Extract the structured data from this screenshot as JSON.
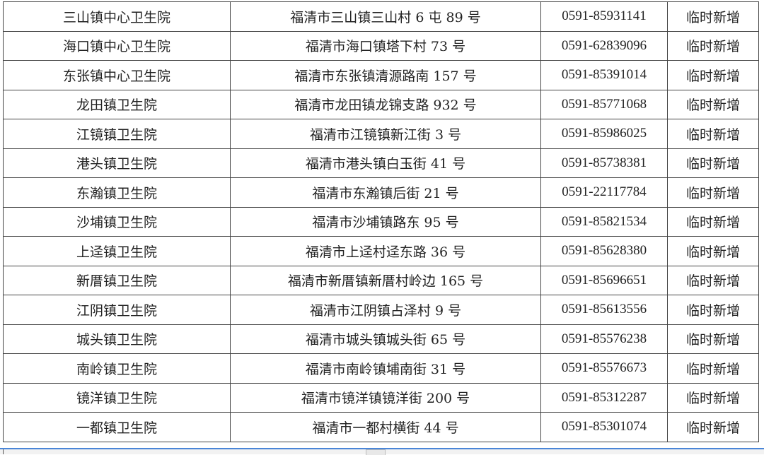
{
  "rows": [
    {
      "name": "三山镇中心卫生院",
      "address": "福清市三山镇三山村 6 屯 89 号",
      "phone": "0591-85931141",
      "status": "临时新增"
    },
    {
      "name": "海口镇中心卫生院",
      "address": "福清市海口镇塔下村 73 号",
      "phone": "0591-62839096",
      "status": "临时新增"
    },
    {
      "name": "东张镇中心卫生院",
      "address": "福清市东张镇清源路南 157 号",
      "phone": "0591-85391014",
      "status": "临时新增"
    },
    {
      "name": "龙田镇卫生院",
      "address": "福清市龙田镇龙锦支路 932 号",
      "phone": "0591-85771068",
      "status": "临时新增"
    },
    {
      "name": "江镜镇卫生院",
      "address": "福清市江镜镇新江街 3 号",
      "phone": "0591-85986025",
      "status": "临时新增"
    },
    {
      "name": "港头镇卫生院",
      "address": "福清市港头镇白玉街 41 号",
      "phone": "0591-85738381",
      "status": "临时新增"
    },
    {
      "name": "东瀚镇卫生院",
      "address": "福清市东瀚镇后街 21 号",
      "phone": "0591-22117784",
      "status": "临时新增"
    },
    {
      "name": "沙埔镇卫生院",
      "address": "福清市沙埔镇路东 95 号",
      "phone": "0591-85821534",
      "status": "临时新增"
    },
    {
      "name": "上迳镇卫生院",
      "address": "福清市上迳村迳东路 36 号",
      "phone": "0591-85628380",
      "status": "临时新增"
    },
    {
      "name": "新厝镇卫生院",
      "address": "福清市新厝镇新厝村岭边 165 号",
      "phone": "0591-85696651",
      "status": "临时新增"
    },
    {
      "name": "江阴镇卫生院",
      "address": "福清市江阴镇占泽村 9 号",
      "phone": "0591-85613556",
      "status": "临时新增"
    },
    {
      "name": "城头镇卫生院",
      "address": "福清市城头镇城头街 65 号",
      "phone": "0591-85576238",
      "status": "临时新增"
    },
    {
      "name": "南岭镇卫生院",
      "address": "福清市南岭镇埔南街 31 号",
      "phone": "0591-85576673",
      "status": "临时新增"
    },
    {
      "name": "镜洋镇卫生院",
      "address": "福清市镜洋镇镜洋街 200 号",
      "phone": "0591-85312287",
      "status": "临时新增"
    },
    {
      "name": "一都镇卫生院",
      "address": "福清市一都村横街 44 号",
      "phone": "0591-85301074",
      "status": "临时新增"
    }
  ]
}
